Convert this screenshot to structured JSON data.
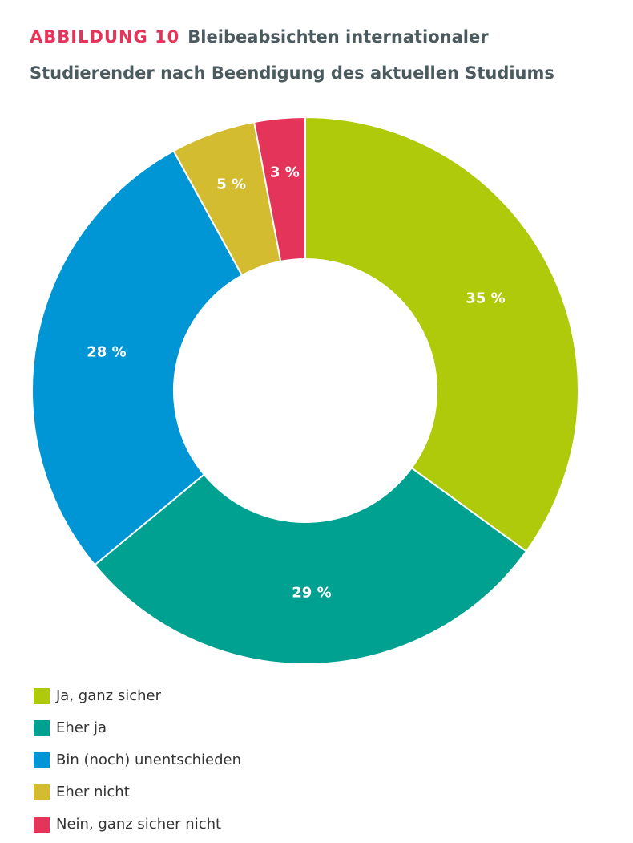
{
  "chart_data": {
    "type": "donut",
    "figure_label": "ABBILDUNG 10",
    "title": "Bleibeabsichten internationaler Studierender nach Beendigung des aktuellen Studiums",
    "categories": [
      "Ja, ganz sicher",
      "Eher ja",
      "Bin (noch) unentschieden",
      "Eher nicht",
      "Nein, ganz sicher nicht"
    ],
    "values": [
      35,
      29,
      28,
      5,
      3
    ],
    "value_labels": [
      "35 %",
      "29 %",
      "28 %",
      "5 %",
      "3 %"
    ],
    "colors": [
      "#afca0b",
      "#00a190",
      "#0096d6",
      "#d4bc30",
      "#e5345a"
    ]
  }
}
